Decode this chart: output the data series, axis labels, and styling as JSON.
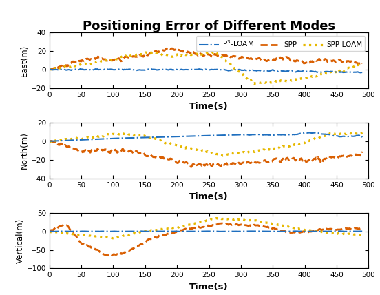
{
  "title": "Positioning Error of Different Modes",
  "title_fontsize": 13,
  "title_fontweight": "bold",
  "xlabel": "Time(s)",
  "subplots": [
    {
      "ylabel": "East(m)",
      "ylim": [
        -20,
        40
      ],
      "yticks": [
        -20,
        0,
        20,
        40
      ]
    },
    {
      "ylabel": "North(m)",
      "ylim": [
        -40,
        20
      ],
      "yticks": [
        -40,
        -20,
        0,
        20
      ]
    },
    {
      "ylabel": "Vertical(m)",
      "ylim": [
        -100,
        50
      ],
      "yticks": [
        -100,
        -50,
        0,
        50
      ]
    }
  ],
  "legend": {
    "colors": [
      "#1F6FBF",
      "#D95F02",
      "#E6B800"
    ],
    "linewidths": [
      1.5,
      2.0,
      1.8
    ]
  },
  "xticks": [
    0,
    50,
    100,
    150,
    200,
    250,
    300,
    350,
    400,
    450,
    500
  ],
  "figsize": [
    5.52,
    4.28
  ],
  "dpi": 100
}
